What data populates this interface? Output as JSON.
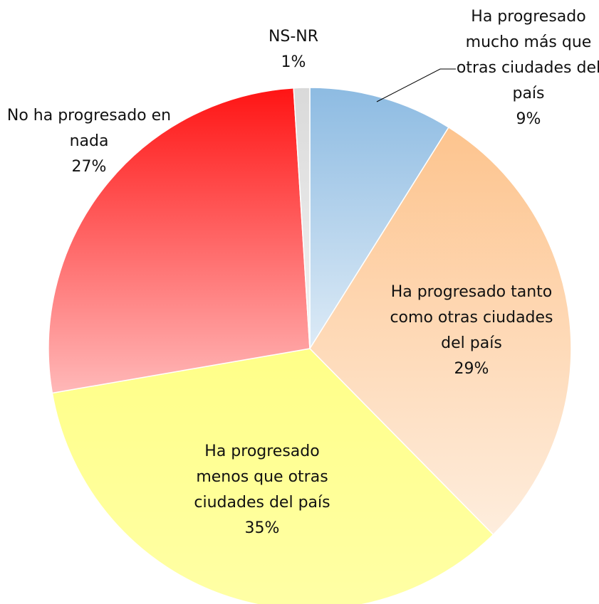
{
  "chart_data": {
    "type": "pie",
    "categories": [
      "Ha progresado mucho más que otras ciudades del país",
      "Ha progresado tanto como otras ciudades del país",
      "Ha progresado menos que otras ciudades del país",
      "No ha progresado en nada",
      "NS-NR"
    ],
    "values": [
      9,
      29,
      35,
      27,
      1
    ],
    "value_labels": [
      "9%",
      "29%",
      "35%",
      "27%",
      "1%"
    ],
    "colors": [
      "#8dbbe2",
      "#fdc48e",
      "#ffff88",
      "#ff1414",
      "#d9d9d9"
    ]
  }
}
